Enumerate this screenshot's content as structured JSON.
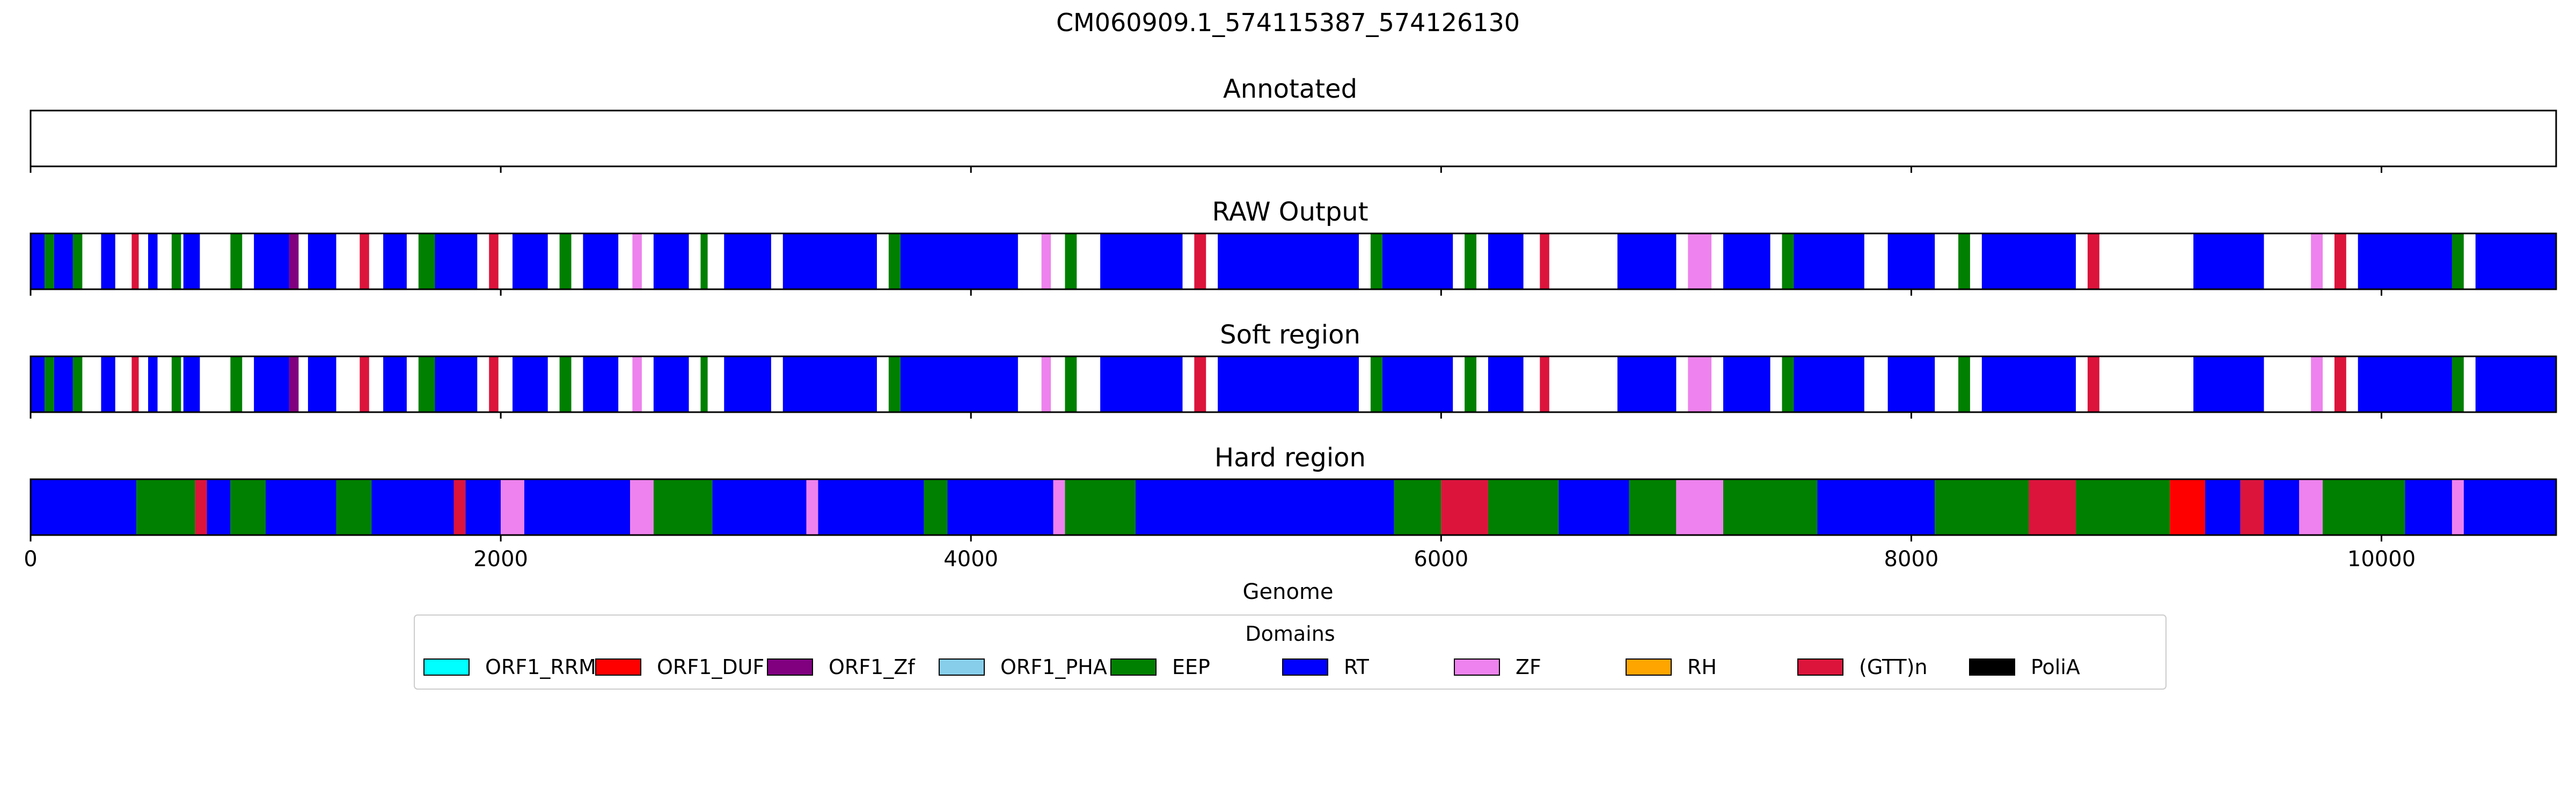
{
  "chart_data": {
    "type": "genome-track",
    "title": "CM060909.1_574115387_574126130",
    "xlabel": "Genome",
    "xlim": [
      0,
      10743
    ],
    "x_ticks": [
      0,
      2000,
      4000,
      6000,
      8000,
      10000
    ],
    "x_tick_labels": [
      "0",
      "2000",
      "4000",
      "6000",
      "8000",
      "10000"
    ],
    "legend": {
      "title": "Domains",
      "placement": "bottom-center",
      "entries": [
        {
          "name": "ORF1_RRM",
          "color": "#00FFFF"
        },
        {
          "name": "ORF1_DUF",
          "color": "#FF0000"
        },
        {
          "name": "ORF1_Zf",
          "color": "#800080"
        },
        {
          "name": "ORF1_PHA",
          "color": "#87CEEB"
        },
        {
          "name": "EEP",
          "color": "#008000"
        },
        {
          "name": "RT",
          "color": "#0000FF"
        },
        {
          "name": "ZF",
          "color": "#EE82EE"
        },
        {
          "name": "RH",
          "color": "#FFA500"
        },
        {
          "name": "(GTT)n",
          "color": "#DC143C"
        },
        {
          "name": "PoliA",
          "color": "#000000"
        }
      ]
    },
    "panels": [
      {
        "title": "Annotated",
        "segments": []
      },
      {
        "title": "RAW Output",
        "segments": [
          {
            "start": 0,
            "end": 60,
            "domain": "RT"
          },
          {
            "start": 60,
            "end": 100,
            "domain": "EEP"
          },
          {
            "start": 100,
            "end": 180,
            "domain": "RT"
          },
          {
            "start": 180,
            "end": 220,
            "domain": "EEP"
          },
          {
            "start": 300,
            "end": 360,
            "domain": "RT"
          },
          {
            "start": 430,
            "end": 460,
            "domain": "(GTT)n"
          },
          {
            "start": 500,
            "end": 540,
            "domain": "RT"
          },
          {
            "start": 600,
            "end": 640,
            "domain": "EEP"
          },
          {
            "start": 650,
            "end": 720,
            "domain": "RT"
          },
          {
            "start": 850,
            "end": 900,
            "domain": "EEP"
          },
          {
            "start": 950,
            "end": 1100,
            "domain": "RT"
          },
          {
            "start": 1100,
            "end": 1140,
            "domain": "ORF1_Zf"
          },
          {
            "start": 1180,
            "end": 1300,
            "domain": "RT"
          },
          {
            "start": 1400,
            "end": 1440,
            "domain": "(GTT)n"
          },
          {
            "start": 1500,
            "end": 1600,
            "domain": "RT"
          },
          {
            "start": 1650,
            "end": 1720,
            "domain": "EEP"
          },
          {
            "start": 1720,
            "end": 1900,
            "domain": "RT"
          },
          {
            "start": 1950,
            "end": 1990,
            "domain": "(GTT)n"
          },
          {
            "start": 2050,
            "end": 2200,
            "domain": "RT"
          },
          {
            "start": 2250,
            "end": 2300,
            "domain": "EEP"
          },
          {
            "start": 2350,
            "end": 2500,
            "domain": "RT"
          },
          {
            "start": 2560,
            "end": 2600,
            "domain": "ZF"
          },
          {
            "start": 2650,
            "end": 2800,
            "domain": "RT"
          },
          {
            "start": 2850,
            "end": 2880,
            "domain": "EEP"
          },
          {
            "start": 2950,
            "end": 3150,
            "domain": "RT"
          },
          {
            "start": 3200,
            "end": 3600,
            "domain": "RT"
          },
          {
            "start": 3650,
            "end": 3700,
            "domain": "EEP"
          },
          {
            "start": 3700,
            "end": 4200,
            "domain": "RT"
          },
          {
            "start": 4300,
            "end": 4340,
            "domain": "ZF"
          },
          {
            "start": 4400,
            "end": 4450,
            "domain": "EEP"
          },
          {
            "start": 4550,
            "end": 4900,
            "domain": "RT"
          },
          {
            "start": 4950,
            "end": 5000,
            "domain": "(GTT)n"
          },
          {
            "start": 5050,
            "end": 5650,
            "domain": "RT"
          },
          {
            "start": 5700,
            "end": 5750,
            "domain": "EEP"
          },
          {
            "start": 5750,
            "end": 6050,
            "domain": "RT"
          },
          {
            "start": 6100,
            "end": 6150,
            "domain": "EEP"
          },
          {
            "start": 6200,
            "end": 6350,
            "domain": "RT"
          },
          {
            "start": 6420,
            "end": 6460,
            "domain": "(GTT)n"
          },
          {
            "start": 6750,
            "end": 7000,
            "domain": "RT"
          },
          {
            "start": 7050,
            "end": 7150,
            "domain": "ZF"
          },
          {
            "start": 7200,
            "end": 7400,
            "domain": "RT"
          },
          {
            "start": 7450,
            "end": 7500,
            "domain": "EEP"
          },
          {
            "start": 7500,
            "end": 7800,
            "domain": "RT"
          },
          {
            "start": 7900,
            "end": 8100,
            "domain": "RT"
          },
          {
            "start": 8200,
            "end": 8250,
            "domain": "EEP"
          },
          {
            "start": 8300,
            "end": 8700,
            "domain": "RT"
          },
          {
            "start": 8750,
            "end": 8800,
            "domain": "(GTT)n"
          },
          {
            "start": 9200,
            "end": 9500,
            "domain": "RT"
          },
          {
            "start": 9700,
            "end": 9750,
            "domain": "ZF"
          },
          {
            "start": 9800,
            "end": 9850,
            "domain": "(GTT)n"
          },
          {
            "start": 9900,
            "end": 10300,
            "domain": "RT"
          },
          {
            "start": 10300,
            "end": 10350,
            "domain": "EEP"
          },
          {
            "start": 10400,
            "end": 10743,
            "domain": "RT"
          }
        ]
      },
      {
        "title": "Soft region",
        "segments": [
          {
            "start": 0,
            "end": 60,
            "domain": "RT"
          },
          {
            "start": 60,
            "end": 100,
            "domain": "EEP"
          },
          {
            "start": 100,
            "end": 180,
            "domain": "RT"
          },
          {
            "start": 180,
            "end": 220,
            "domain": "EEP"
          },
          {
            "start": 300,
            "end": 360,
            "domain": "RT"
          },
          {
            "start": 430,
            "end": 460,
            "domain": "(GTT)n"
          },
          {
            "start": 500,
            "end": 540,
            "domain": "RT"
          },
          {
            "start": 600,
            "end": 640,
            "domain": "EEP"
          },
          {
            "start": 650,
            "end": 720,
            "domain": "RT"
          },
          {
            "start": 850,
            "end": 900,
            "domain": "EEP"
          },
          {
            "start": 950,
            "end": 1100,
            "domain": "RT"
          },
          {
            "start": 1100,
            "end": 1140,
            "domain": "ORF1_Zf"
          },
          {
            "start": 1180,
            "end": 1300,
            "domain": "RT"
          },
          {
            "start": 1400,
            "end": 1440,
            "domain": "(GTT)n"
          },
          {
            "start": 1500,
            "end": 1600,
            "domain": "RT"
          },
          {
            "start": 1650,
            "end": 1720,
            "domain": "EEP"
          },
          {
            "start": 1720,
            "end": 1900,
            "domain": "RT"
          },
          {
            "start": 1950,
            "end": 1990,
            "domain": "(GTT)n"
          },
          {
            "start": 2050,
            "end": 2200,
            "domain": "RT"
          },
          {
            "start": 2250,
            "end": 2300,
            "domain": "EEP"
          },
          {
            "start": 2350,
            "end": 2500,
            "domain": "RT"
          },
          {
            "start": 2560,
            "end": 2600,
            "domain": "ZF"
          },
          {
            "start": 2650,
            "end": 2800,
            "domain": "RT"
          },
          {
            "start": 2850,
            "end": 2880,
            "domain": "EEP"
          },
          {
            "start": 2950,
            "end": 3150,
            "domain": "RT"
          },
          {
            "start": 3200,
            "end": 3600,
            "domain": "RT"
          },
          {
            "start": 3650,
            "end": 3700,
            "domain": "EEP"
          },
          {
            "start": 3700,
            "end": 4200,
            "domain": "RT"
          },
          {
            "start": 4300,
            "end": 4340,
            "domain": "ZF"
          },
          {
            "start": 4400,
            "end": 4450,
            "domain": "EEP"
          },
          {
            "start": 4550,
            "end": 4900,
            "domain": "RT"
          },
          {
            "start": 4950,
            "end": 5000,
            "domain": "(GTT)n"
          },
          {
            "start": 5050,
            "end": 5650,
            "domain": "RT"
          },
          {
            "start": 5700,
            "end": 5750,
            "domain": "EEP"
          },
          {
            "start": 5750,
            "end": 6050,
            "domain": "RT"
          },
          {
            "start": 6100,
            "end": 6150,
            "domain": "EEP"
          },
          {
            "start": 6200,
            "end": 6350,
            "domain": "RT"
          },
          {
            "start": 6420,
            "end": 6460,
            "domain": "(GTT)n"
          },
          {
            "start": 6750,
            "end": 7000,
            "domain": "RT"
          },
          {
            "start": 7050,
            "end": 7150,
            "domain": "ZF"
          },
          {
            "start": 7200,
            "end": 7400,
            "domain": "RT"
          },
          {
            "start": 7450,
            "end": 7500,
            "domain": "EEP"
          },
          {
            "start": 7500,
            "end": 7800,
            "domain": "RT"
          },
          {
            "start": 7900,
            "end": 8100,
            "domain": "RT"
          },
          {
            "start": 8200,
            "end": 8250,
            "domain": "EEP"
          },
          {
            "start": 8300,
            "end": 8700,
            "domain": "RT"
          },
          {
            "start": 8750,
            "end": 8800,
            "domain": "(GTT)n"
          },
          {
            "start": 9200,
            "end": 9500,
            "domain": "RT"
          },
          {
            "start": 9700,
            "end": 9750,
            "domain": "ZF"
          },
          {
            "start": 9800,
            "end": 9850,
            "domain": "(GTT)n"
          },
          {
            "start": 9900,
            "end": 10300,
            "domain": "RT"
          },
          {
            "start": 10300,
            "end": 10350,
            "domain": "EEP"
          },
          {
            "start": 10400,
            "end": 10743,
            "domain": "RT"
          }
        ]
      },
      {
        "title": "Hard region",
        "segments": [
          {
            "start": 0,
            "end": 450,
            "domain": "RT"
          },
          {
            "start": 450,
            "end": 700,
            "domain": "EEP"
          },
          {
            "start": 700,
            "end": 750,
            "domain": "(GTT)n"
          },
          {
            "start": 750,
            "end": 850,
            "domain": "RT"
          },
          {
            "start": 850,
            "end": 1000,
            "domain": "EEP"
          },
          {
            "start": 1000,
            "end": 1300,
            "domain": "RT"
          },
          {
            "start": 1300,
            "end": 1450,
            "domain": "EEP"
          },
          {
            "start": 1450,
            "end": 1800,
            "domain": "RT"
          },
          {
            "start": 1800,
            "end": 1850,
            "domain": "(GTT)n"
          },
          {
            "start": 1850,
            "end": 2000,
            "domain": "RT"
          },
          {
            "start": 2000,
            "end": 2100,
            "domain": "ZF"
          },
          {
            "start": 2100,
            "end": 2550,
            "domain": "RT"
          },
          {
            "start": 2550,
            "end": 2650,
            "domain": "ZF"
          },
          {
            "start": 2650,
            "end": 2900,
            "domain": "EEP"
          },
          {
            "start": 2900,
            "end": 3300,
            "domain": "RT"
          },
          {
            "start": 3300,
            "end": 3350,
            "domain": "ZF"
          },
          {
            "start": 3350,
            "end": 3800,
            "domain": "RT"
          },
          {
            "start": 3800,
            "end": 3900,
            "domain": "EEP"
          },
          {
            "start": 3900,
            "end": 4350,
            "domain": "RT"
          },
          {
            "start": 4350,
            "end": 4400,
            "domain": "ZF"
          },
          {
            "start": 4400,
            "end": 4700,
            "domain": "EEP"
          },
          {
            "start": 4700,
            "end": 5800,
            "domain": "RT"
          },
          {
            "start": 5800,
            "end": 6000,
            "domain": "EEP"
          },
          {
            "start": 6000,
            "end": 6200,
            "domain": "(GTT)n"
          },
          {
            "start": 6200,
            "end": 6500,
            "domain": "EEP"
          },
          {
            "start": 6500,
            "end": 6800,
            "domain": "RT"
          },
          {
            "start": 6800,
            "end": 7000,
            "domain": "EEP"
          },
          {
            "start": 7000,
            "end": 7200,
            "domain": "ZF"
          },
          {
            "start": 7200,
            "end": 7600,
            "domain": "EEP"
          },
          {
            "start": 7600,
            "end": 8100,
            "domain": "RT"
          },
          {
            "start": 8100,
            "end": 8500,
            "domain": "EEP"
          },
          {
            "start": 8500,
            "end": 8700,
            "domain": "(GTT)n"
          },
          {
            "start": 8700,
            "end": 9100,
            "domain": "EEP"
          },
          {
            "start": 9100,
            "end": 9250,
            "domain": "ORF1_DUF"
          },
          {
            "start": 9250,
            "end": 9400,
            "domain": "RT"
          },
          {
            "start": 9400,
            "end": 9500,
            "domain": "(GTT)n"
          },
          {
            "start": 9500,
            "end": 9650,
            "domain": "RT"
          },
          {
            "start": 9650,
            "end": 9750,
            "domain": "ZF"
          },
          {
            "start": 9750,
            "end": 10100,
            "domain": "EEP"
          },
          {
            "start": 10100,
            "end": 10300,
            "domain": "RT"
          },
          {
            "start": 10300,
            "end": 10350,
            "domain": "ZF"
          },
          {
            "start": 10350,
            "end": 10743,
            "domain": "RT"
          }
        ]
      }
    ]
  }
}
